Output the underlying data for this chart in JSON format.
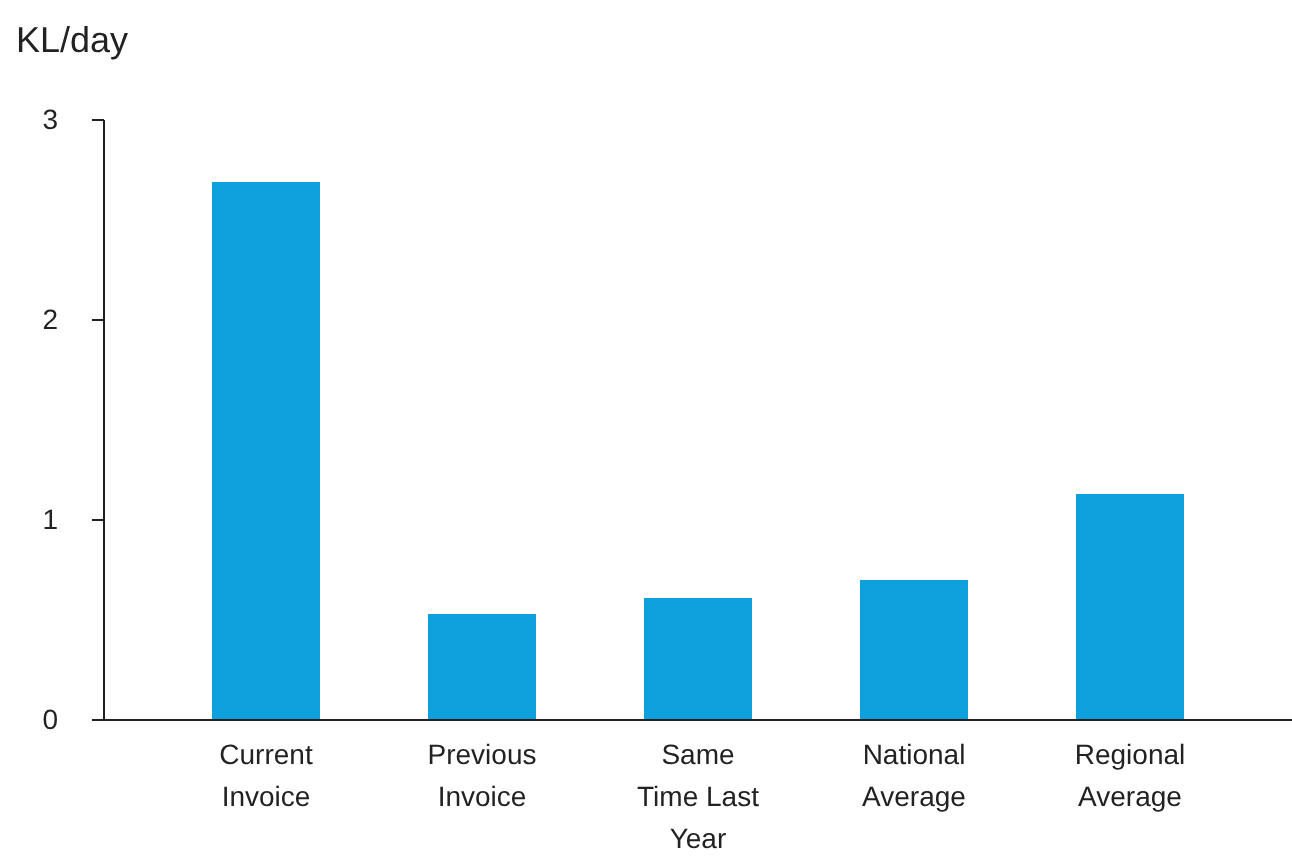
{
  "chart_data": {
    "type": "bar",
    "ylabel": "KL/day",
    "categories": [
      "Current Invoice",
      "Previous Invoice",
      "Same Time Last Year",
      "National Average",
      "Regional Average"
    ],
    "values": [
      2.69,
      0.53,
      0.61,
      0.7,
      1.13
    ],
    "color": "#0ea0dc",
    "ylim": [
      0,
      3
    ],
    "yticks": [
      0,
      1,
      2,
      3
    ]
  }
}
